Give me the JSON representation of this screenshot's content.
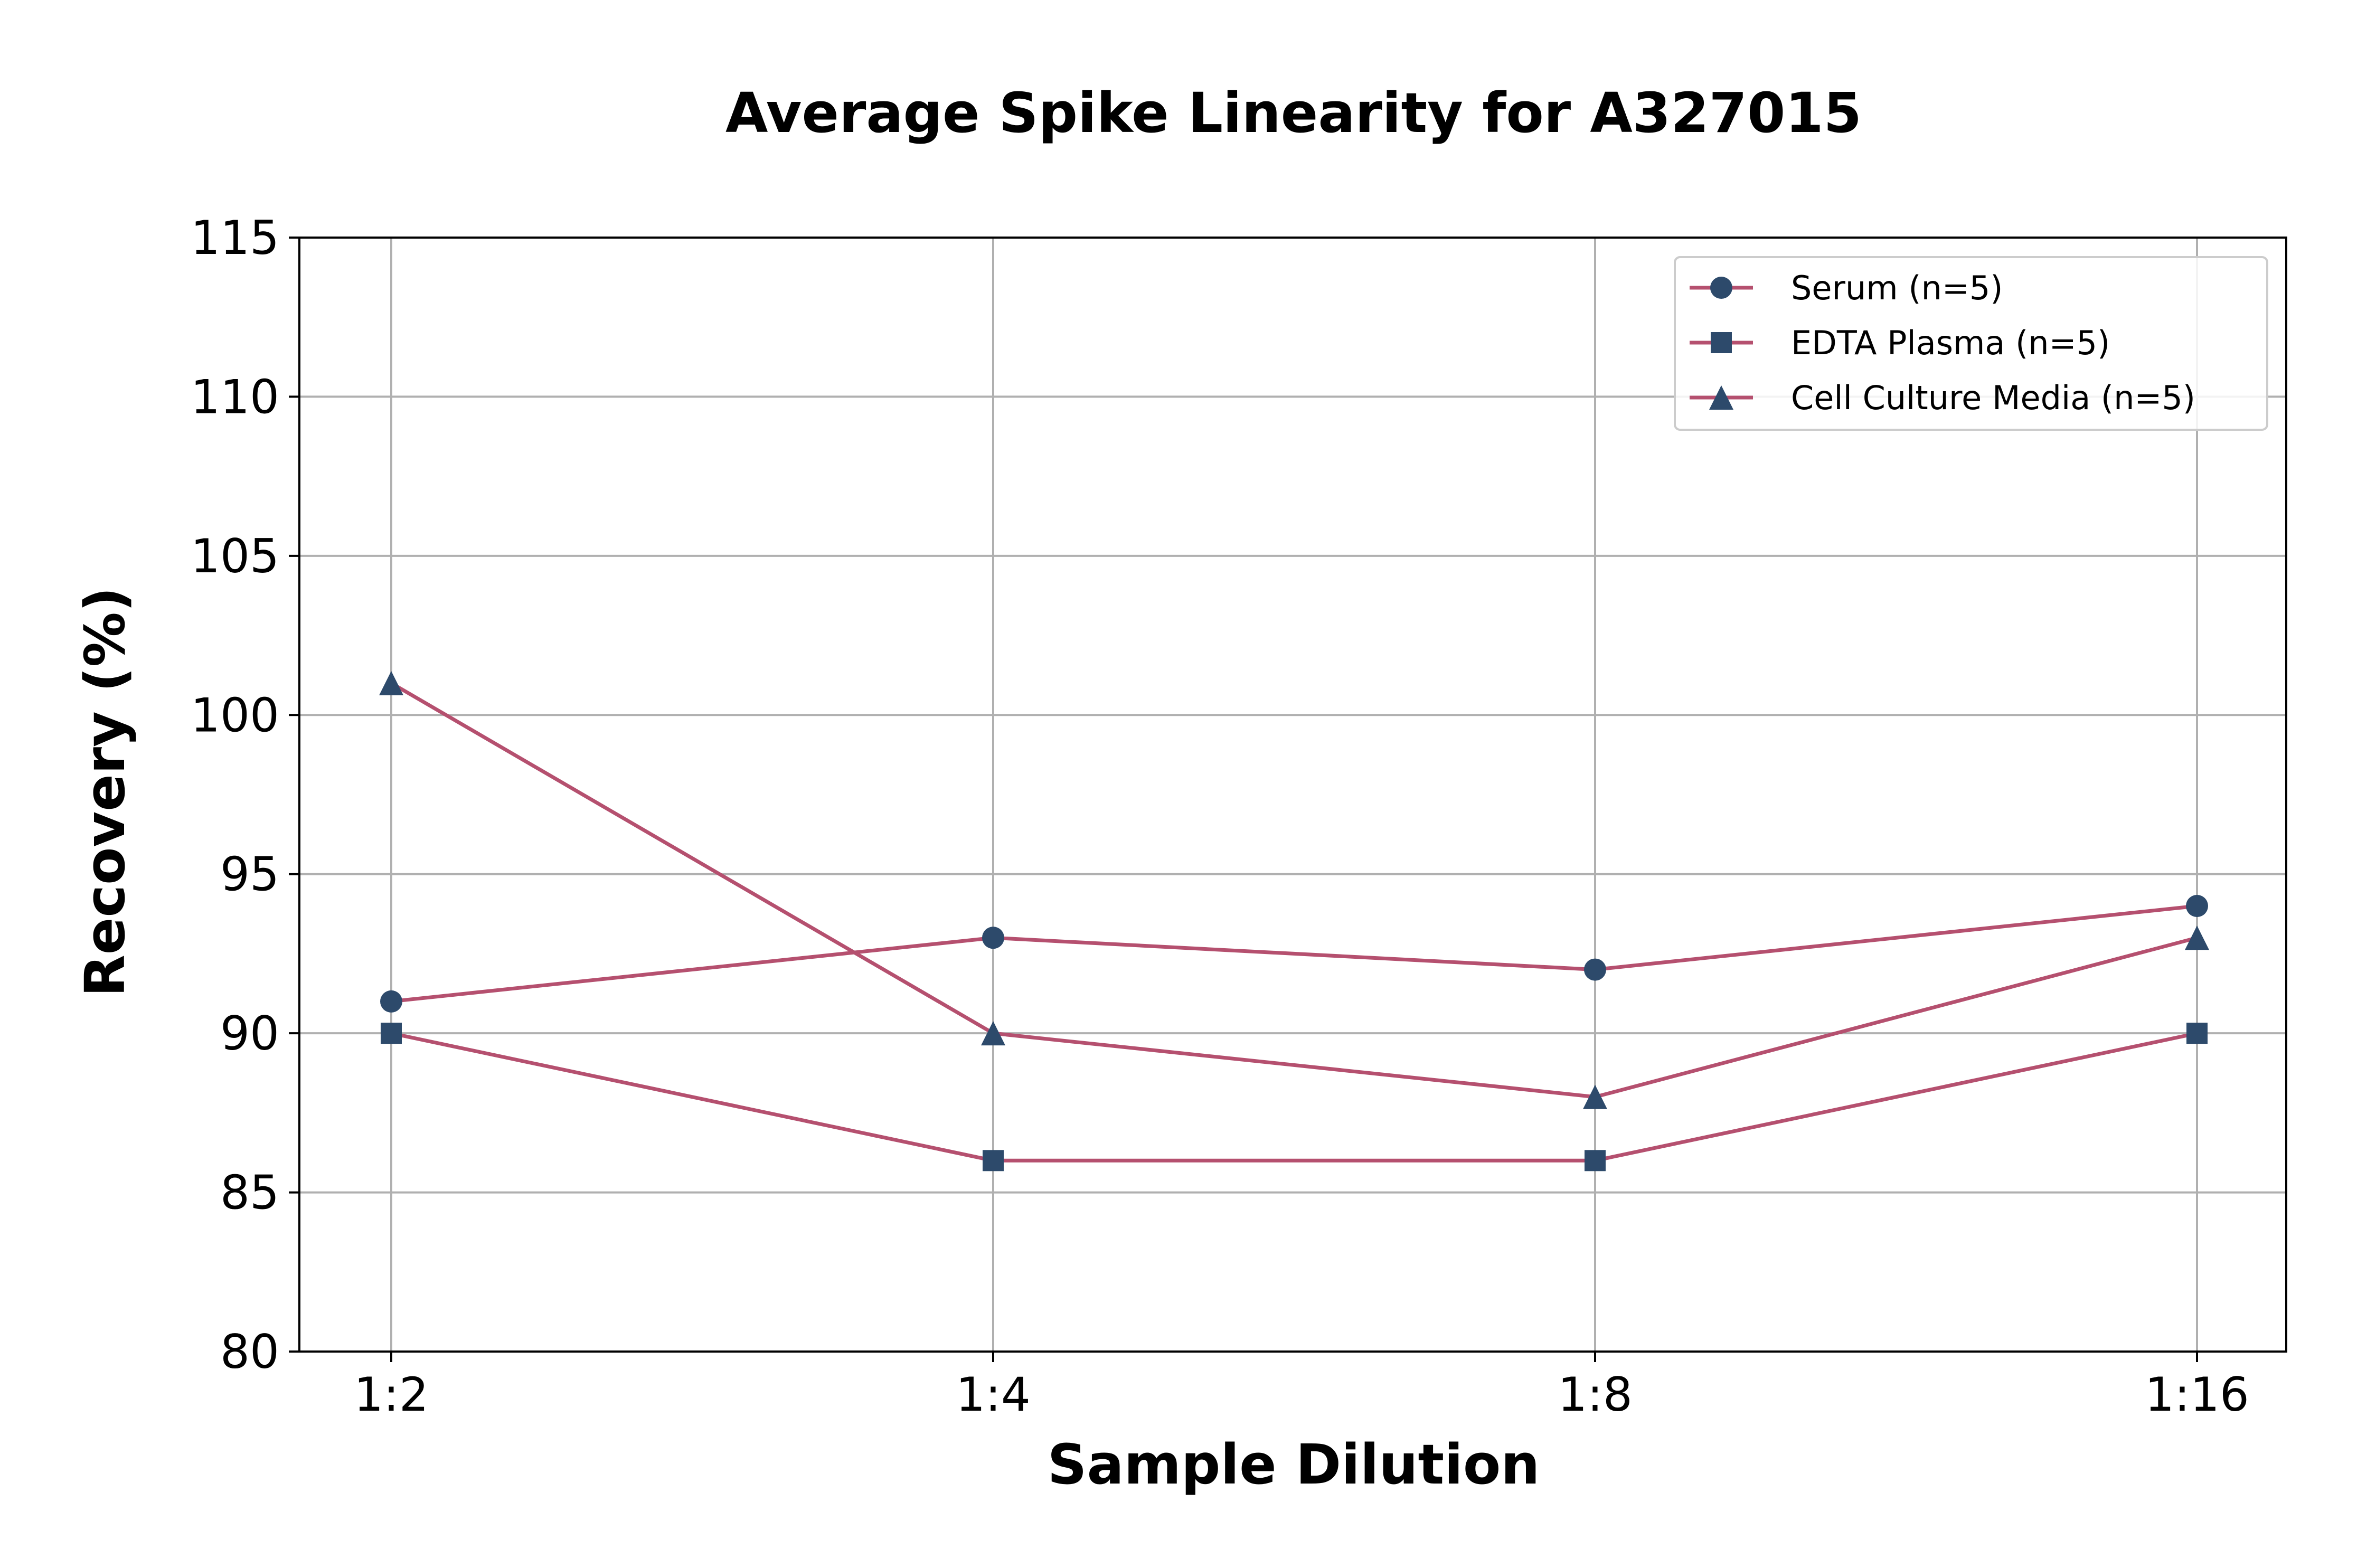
{
  "chart_data": {
    "type": "line",
    "title": "Average Spike Linearity for A327015",
    "xlabel": "Sample Dilution",
    "ylabel": "Recovery (%)",
    "categories": [
      "1:2",
      "1:4",
      "1:8",
      "1:16"
    ],
    "ylim": [
      80,
      115
    ],
    "yticks": [
      80,
      85,
      90,
      95,
      100,
      105,
      110,
      115
    ],
    "grid": true,
    "legend_position": "top-right",
    "line_color": "#b5506f",
    "marker_color": "#2d4a6b",
    "series": [
      {
        "name": "Serum (n=5)",
        "marker": "circle",
        "values": [
          91,
          93,
          92,
          94
        ]
      },
      {
        "name": "EDTA Plasma (n=5)",
        "marker": "square",
        "values": [
          90,
          86,
          86,
          90
        ]
      },
      {
        "name": "Cell Culture Media (n=5)",
        "marker": "triangle",
        "values": [
          101,
          90,
          88,
          93
        ]
      }
    ]
  }
}
